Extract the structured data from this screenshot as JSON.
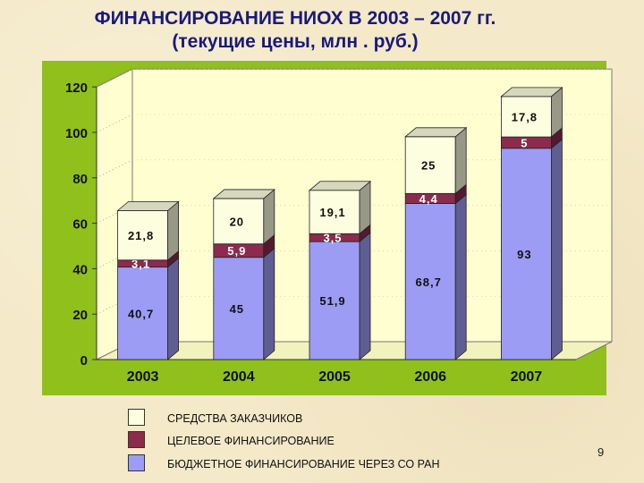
{
  "title_line1": "ФИНАНСИРОВАНИЕ НИОХ В 2003 – 2007 гг.",
  "title_line2": "(текущие цены, млн . руб.)",
  "page_number": "9",
  "chart_data": {
    "type": "bar",
    "stacked": true,
    "three_d": true,
    "categories": [
      "2003",
      "2004",
      "2005",
      "2006",
      "2007"
    ],
    "ylim": [
      0,
      120
    ],
    "yticks": [
      0,
      20,
      40,
      60,
      80,
      100,
      120
    ],
    "grid": true,
    "legend_position": "bottom",
    "series": [
      {
        "name": "БЮДЖЕТНОЕ ФИНАНСИРОВАНИЕ ЧЕРЕЗ СО РАН",
        "values": [
          40.7,
          45,
          51.9,
          68.7,
          93
        ],
        "labels": [
          "40,7",
          "45",
          "51,9",
          "68,7",
          "93"
        ],
        "color": "#9c9cf5"
      },
      {
        "name": "ЦЕЛЕВОЕ ФИНАНСИРОВАНИЕ",
        "values": [
          3.1,
          5.9,
          3.5,
          4.4,
          5
        ],
        "labels": [
          "3,1",
          "5,9",
          "3,5",
          "4,4",
          "5"
        ],
        "color": "#8b2b4e"
      },
      {
        "name": "СРЕДСТВА ЗАКАЗЧИКОВ",
        "values": [
          21.8,
          20,
          19.1,
          25,
          17.8
        ],
        "labels": [
          "21,8",
          "20",
          "19,1",
          "25",
          "17,8"
        ],
        "color": "#fdfde0"
      }
    ],
    "colors": {
      "plot_background": "#8fc01c",
      "wall": "#fefed0",
      "floor": "#f2f2bc"
    }
  }
}
